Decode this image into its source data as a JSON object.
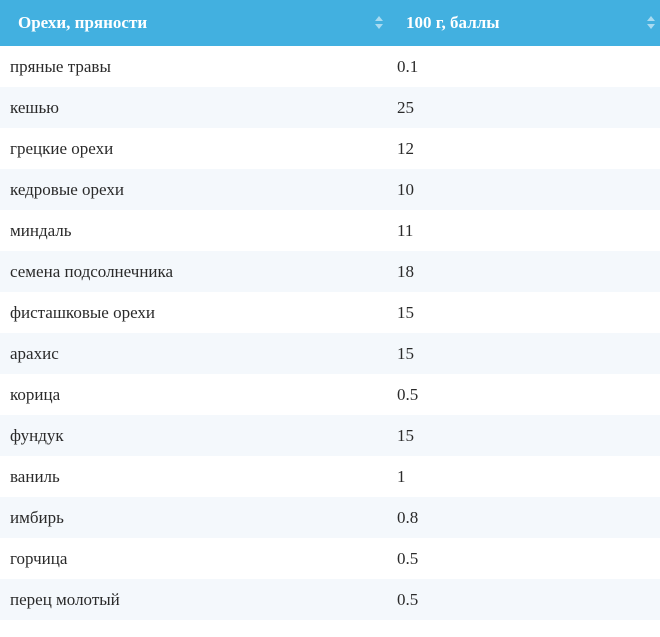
{
  "table": {
    "headers": [
      "Орехи, пряности",
      "100 г, баллы"
    ],
    "rows": [
      [
        "пряные травы",
        "0.1"
      ],
      [
        "кешью",
        "25"
      ],
      [
        "грецкие орехи",
        "12"
      ],
      [
        "кедровые орехи",
        "10"
      ],
      [
        "миндаль",
        "11"
      ],
      [
        "семена подсолнечника",
        "18"
      ],
      [
        "фисташковые орехи",
        "15"
      ],
      [
        "арахис",
        "15"
      ],
      [
        "корица",
        "0.5"
      ],
      [
        "фундук",
        "15"
      ],
      [
        "ваниль",
        "1"
      ],
      [
        "имбирь",
        "0.8"
      ],
      [
        "горчица",
        "0.5"
      ],
      [
        "перец молотый",
        "0.5"
      ]
    ]
  },
  "colors": {
    "header_bg": "#42b0e0",
    "header_text": "#ffffff",
    "row_alt_bg": "#f4f8fc",
    "cell_text": "#2a2a2a"
  },
  "icons": {
    "sort": "sort-icon"
  }
}
